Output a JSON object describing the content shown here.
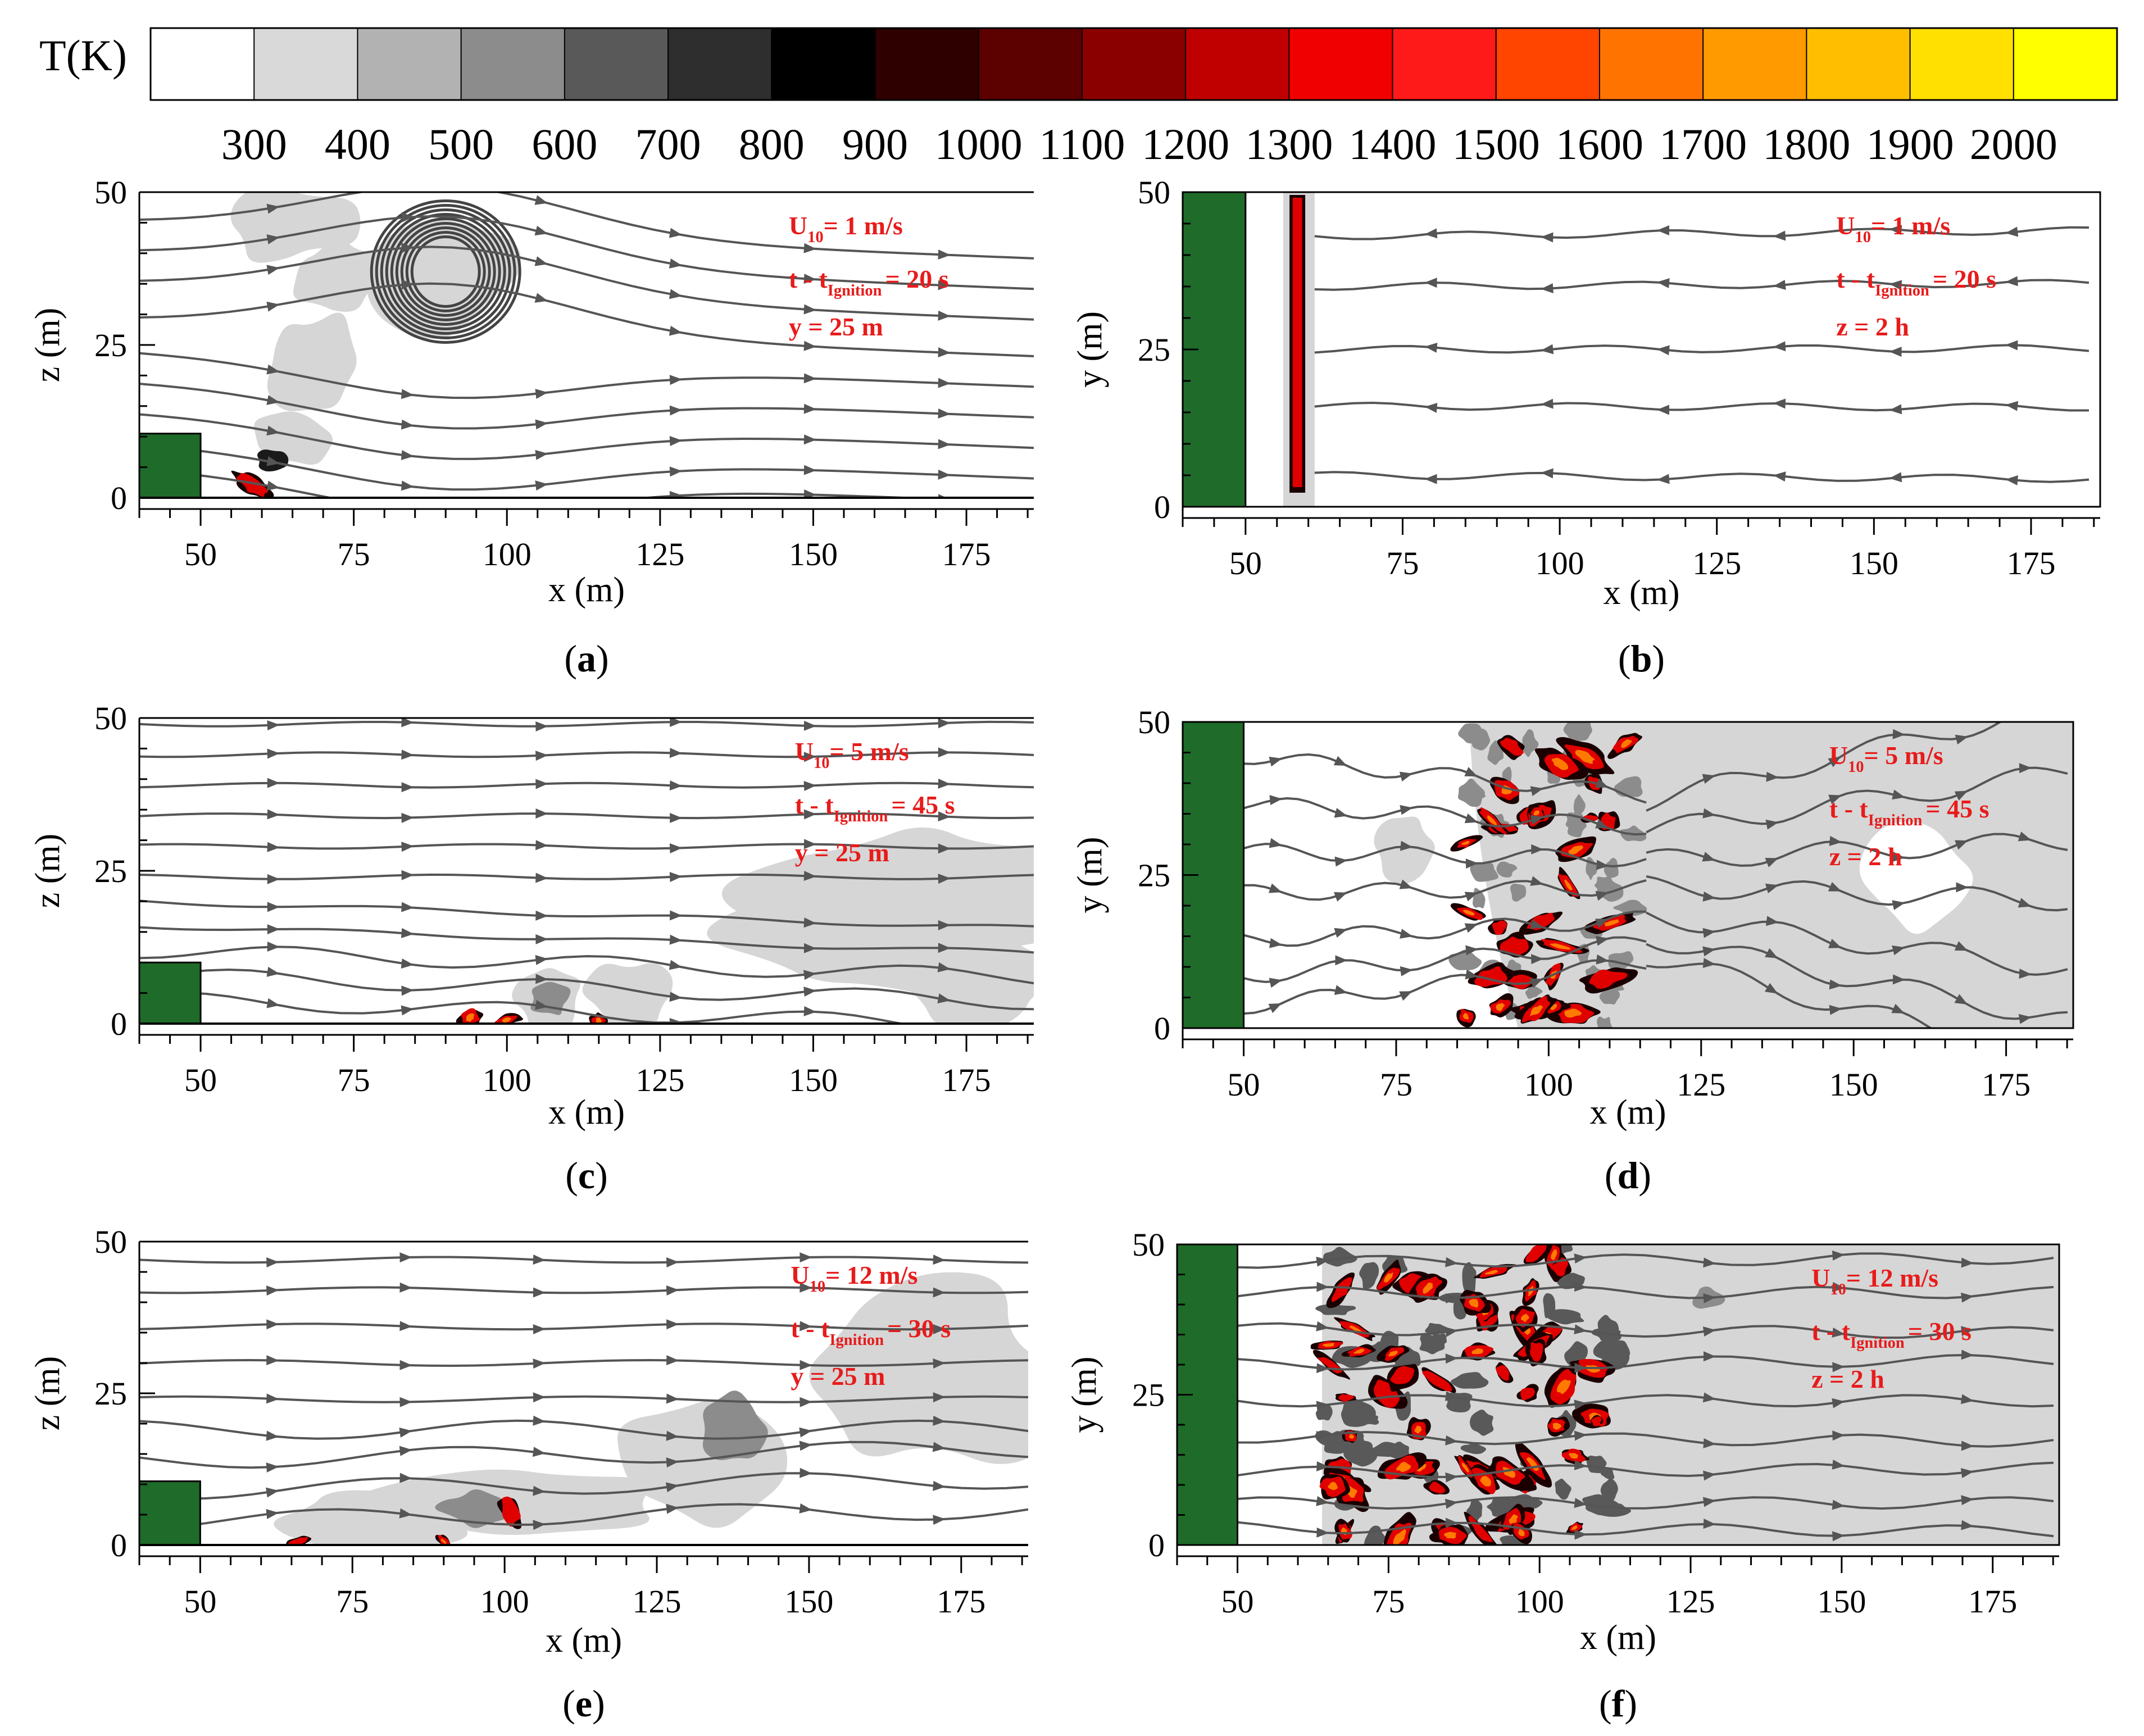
{
  "colorbar": {
    "label": "T(K)",
    "ticks": [
      "300",
      "400",
      "500",
      "600",
      "700",
      "800",
      "900",
      "1000",
      "1100",
      "1200",
      "1300",
      "1400",
      "1500",
      "1600",
      "1700",
      "1800",
      "1900",
      "2000"
    ],
    "colors": [
      "#ffffff",
      "#d9d9d9",
      "#b2b2b2",
      "#8c8c8c",
      "#595959",
      "#2e2e2e",
      "#000000",
      "#2e0000",
      "#5c0000",
      "#8a0000",
      "#c00000",
      "#f00000",
      "#ff1a1a",
      "#ff4500",
      "#ff7400",
      "#ff9a00",
      "#ffbf00",
      "#ffe000",
      "#ffff00"
    ]
  },
  "colors": {
    "tree": "#1f6b2a",
    "annot": "#e81b1b",
    "stream": "#555555",
    "smoke": "#d6d6d6"
  },
  "chart_data": [
    {
      "type": "contour",
      "panel": "a",
      "caption_letter": "a",
      "xlabel": "x (m)",
      "ylabel": "z (m)",
      "xticks": [
        "50",
        "75",
        "100",
        "125",
        "150",
        "175"
      ],
      "yticks": [
        "0",
        "25",
        "50"
      ],
      "xlim": [
        40,
        186
      ],
      "ylim": [
        0,
        50
      ],
      "annot": {
        "u": "U",
        "u_sub": "10",
        "u_rest": "= 1 m/s",
        "t": "t - t",
        "t_sub": "Ignition",
        "t_rest": "= 20 s",
        "plane": "y = 25 m"
      },
      "tree": {
        "x0": 40,
        "x1": 50,
        "y0": 0,
        "y1": 10.5
      }
    },
    {
      "type": "contour",
      "panel": "b",
      "caption_letter": "b",
      "xlabel": "x (m)",
      "ylabel": "y (m)",
      "xticks": [
        "50",
        "75",
        "100",
        "125",
        "150",
        "175"
      ],
      "yticks": [
        "0",
        "25",
        "50"
      ],
      "xlim": [
        40,
        186
      ],
      "ylim": [
        0,
        50
      ],
      "annot": {
        "u": "U",
        "u_sub": "10",
        "u_rest": "= 1 m/s",
        "t": "t - t",
        "t_sub": "Ignition",
        "t_rest": "= 20 s",
        "plane": "z = 2 h"
      },
      "tree": {
        "x0": 40,
        "x1": 50,
        "y0": 0,
        "y1": 50
      }
    },
    {
      "type": "contour",
      "panel": "c",
      "caption_letter": "c",
      "xlabel": "x (m)",
      "ylabel": "z (m)",
      "xticks": [
        "50",
        "75",
        "100",
        "125",
        "150",
        "175"
      ],
      "yticks": [
        "0",
        "25",
        "50"
      ],
      "xlim": [
        40,
        186
      ],
      "ylim": [
        0,
        50
      ],
      "annot": {
        "u": "U",
        "u_sub": "10",
        "u_rest": "= 5 m/s",
        "t": "t - t",
        "t_sub": "Ignition",
        "t_rest": "= 45 s",
        "plane": "y = 25 m"
      },
      "tree": {
        "x0": 40,
        "x1": 50,
        "y0": 0,
        "y1": 10
      }
    },
    {
      "type": "contour",
      "panel": "d",
      "caption_letter": "d",
      "xlabel": "x (m)",
      "ylabel": "y (m)",
      "xticks": [
        "50",
        "75",
        "100",
        "125",
        "150",
        "175"
      ],
      "yticks": [
        "0",
        "25",
        "50"
      ],
      "xlim": [
        40,
        186
      ],
      "ylim": [
        0,
        50
      ],
      "annot": {
        "u": "U",
        "u_sub": "10",
        "u_rest": "= 5 m/s",
        "t": "t - t",
        "t_sub": "Ignition",
        "t_rest": "= 45 s",
        "plane": "z = 2 h"
      },
      "tree": {
        "x0": 40,
        "x1": 50,
        "y0": 0,
        "y1": 50
      }
    },
    {
      "type": "contour",
      "panel": "e",
      "caption_letter": "e",
      "xlabel": "x (m)",
      "ylabel": "z (m)",
      "xticks": [
        "50",
        "75",
        "100",
        "125",
        "150",
        "175"
      ],
      "yticks": [
        "0",
        "25",
        "50"
      ],
      "xlim": [
        40,
        186
      ],
      "ylim": [
        0,
        50
      ],
      "annot": {
        "u": "U",
        "u_sub": "10",
        "u_rest": "= 12 m/s",
        "t": "t - t",
        "t_sub": "Ignition",
        "t_rest": "= 30 s",
        "plane": "y = 25 m"
      },
      "tree": {
        "x0": 40,
        "x1": 50,
        "y0": 0,
        "y1": 10.5
      }
    },
    {
      "type": "contour",
      "panel": "f",
      "caption_letter": "f",
      "xlabel": "x (m)",
      "ylabel": "y (m)",
      "xticks": [
        "50",
        "75",
        "100",
        "125",
        "150",
        "175"
      ],
      "yticks": [
        "0",
        "25",
        "50"
      ],
      "xlim": [
        40,
        186
      ],
      "ylim": [
        0,
        50
      ],
      "annot": {
        "u": "U",
        "u_sub": "10",
        "u_rest": "= 12 m/s",
        "t": "t - t",
        "t_sub": "Ignition",
        "t_rest": "= 30 s",
        "plane": "z = 2 h"
      },
      "tree": {
        "x0": 40,
        "x1": 50,
        "y0": 0,
        "y1": 50
      }
    }
  ]
}
